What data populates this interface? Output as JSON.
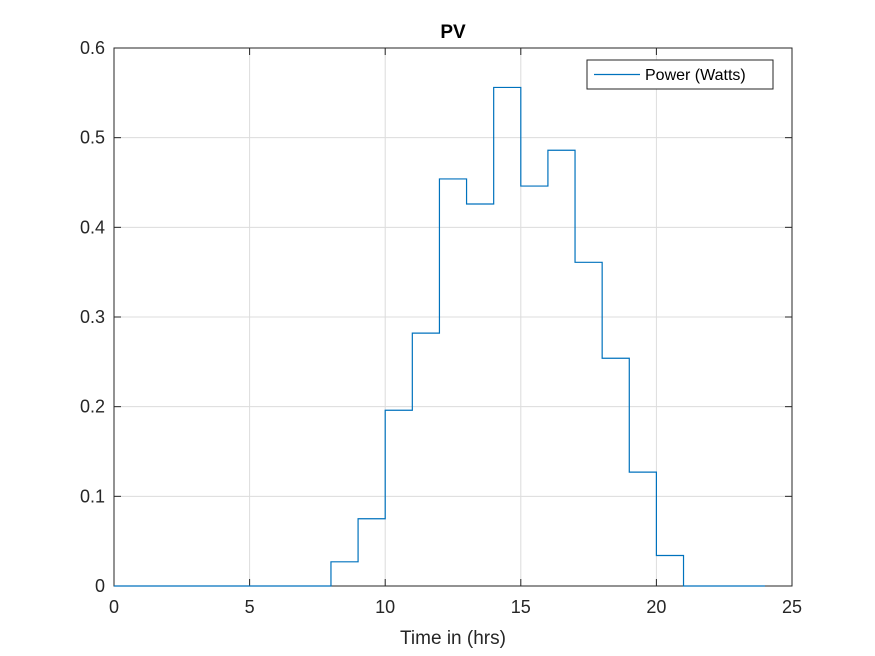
{
  "chart_data": {
    "type": "line",
    "style": "step",
    "title": "PV",
    "xlabel": "Time in (hrs)",
    "ylabel": "",
    "xlim": [
      0,
      25
    ],
    "ylim": [
      0,
      0.6
    ],
    "xticks": [
      0,
      5,
      10,
      15,
      20,
      25
    ],
    "yticks": [
      0,
      0.1,
      0.2,
      0.3,
      0.4,
      0.5,
      0.6
    ],
    "xtick_labels": [
      "0",
      "5",
      "10",
      "15",
      "20",
      "25"
    ],
    "ytick_labels": [
      "0",
      "0.1",
      "0.2",
      "0.3",
      "0.4",
      "0.5",
      "0.6"
    ],
    "grid": true,
    "legend_position": "top-right",
    "series": [
      {
        "name": "Power (Watts)",
        "color": "#0072BD",
        "x": [
          0,
          1,
          2,
          3,
          4,
          5,
          6,
          7,
          8,
          9,
          10,
          11,
          12,
          13,
          14,
          15,
          16,
          17,
          18,
          19,
          20,
          21,
          22,
          23,
          24
        ],
        "y": [
          0,
          0,
          0,
          0,
          0,
          0,
          0,
          0,
          0.027,
          0.075,
          0.196,
          0.282,
          0.454,
          0.426,
          0.556,
          0.446,
          0.486,
          0.361,
          0.254,
          0.127,
          0.034,
          0,
          0,
          0,
          0
        ]
      }
    ]
  }
}
